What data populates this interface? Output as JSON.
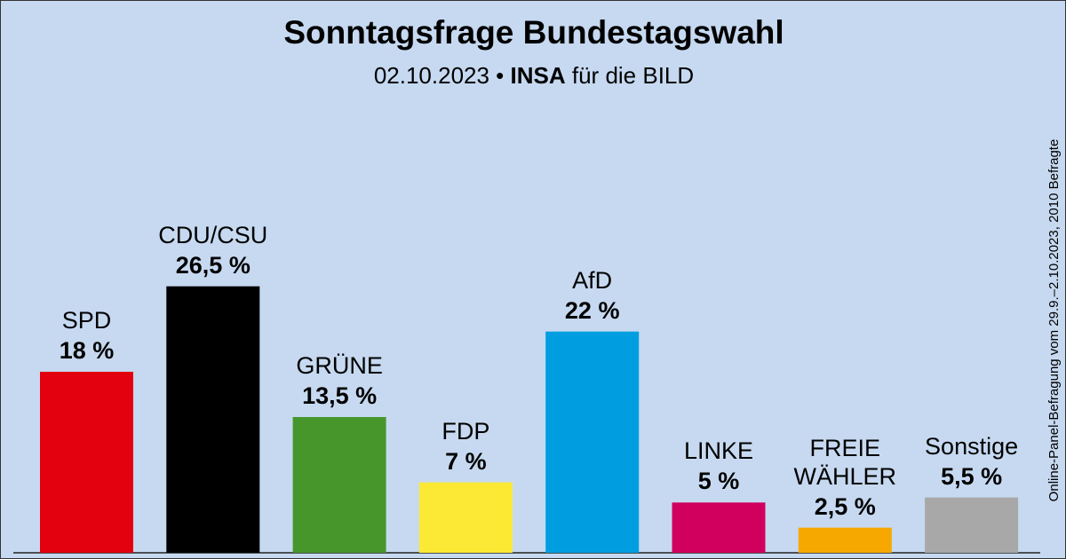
{
  "chart_data": {
    "type": "bar",
    "title": "Sonntagsfrage Bundestagswahl",
    "subtitle_parts": [
      "02.10.2023 •",
      "INSA",
      "für die BILD"
    ],
    "side_note": "Online-Panel-Befragung vom 29.9.–2.10.2023, 2010 Befragte",
    "categories": [
      "SPD",
      "CDU/CSU",
      "GRÜNE",
      "FDP",
      "AfD",
      "LINKE",
      "FREIE WÄHLER",
      "Sonstige"
    ],
    "values": [
      18,
      26.5,
      13.5,
      7,
      22,
      5,
      2.5,
      5.5
    ],
    "value_labels": [
      "18 %",
      "26,5 %",
      "13,5 %",
      "7 %",
      "22 %",
      "5 %",
      "2,5 %",
      "5,5 %"
    ],
    "colors": [
      "#e3000f",
      "#000000",
      "#46962b",
      "#fbe935",
      "#009ee0",
      "#d1005f",
      "#f7a800",
      "#a8a8a8"
    ],
    "ylim": [
      0,
      30
    ]
  }
}
